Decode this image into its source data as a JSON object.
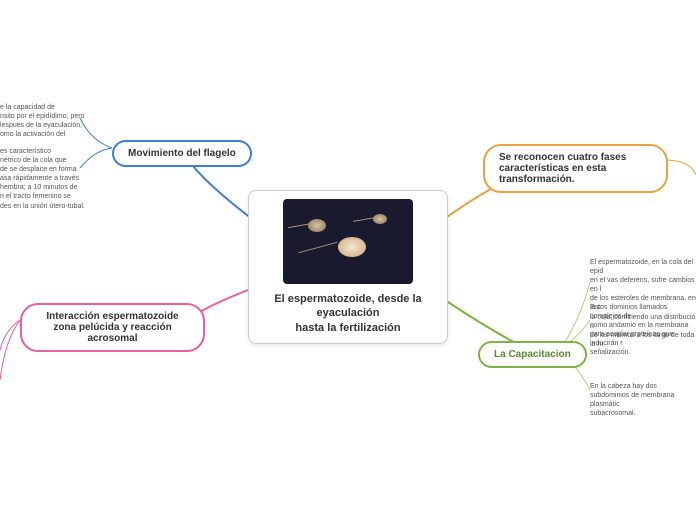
{
  "central": {
    "title": "El espermatozoide, desde la eyaculación\nhasta la fertilización"
  },
  "branches": {
    "top_left": {
      "label": "Movimiento del flagelo",
      "color": "#3b7dd8",
      "leaves": [
        "e la capacidad de\nnsito por el epidídimo, pero\nlespués de la eyaculación,\nomo la activación del",
        "es característico\nnétrico de la cola que\nde se desplace en forma\nasa rápidamente a través\nhembra; a 10 minutos de\nn el tracto femenino se\ndes en la unión útero-tubal."
      ]
    },
    "top_right": {
      "label": "Se reconocen cuatro fases características en esta\ntransformación.",
      "color": "#e8a23f"
    },
    "left": {
      "label": "Interacción espermatozoide zona pelúcida y reacción acrosomal",
      "color": "#e85f9c"
    },
    "bottom_right": {
      "label": "La Capacitacion",
      "color": "#7cb342",
      "leaves": [
        "El espermatozoide, en la cola del epid\nen el vas deferens, sufre cambios en l\nde los esteroles de membrana, en la c\nla cola, confiriendo una distribución n\nde los mismos a los largo de toda la m",
        "Estos dominios llamados complejos de\ncomo andamio en la membrana\npara acoplar proteínas que inducirán r\nseñalización.",
        "En la cabeza hay dos\nsubdominios de membrana plasmátic\nsubacrosomal."
      ]
    }
  },
  "connectors": {
    "blue": "#3b7dd8",
    "orange": "#e8a23f",
    "pink": "#e85f9c",
    "green": "#7cb342"
  }
}
